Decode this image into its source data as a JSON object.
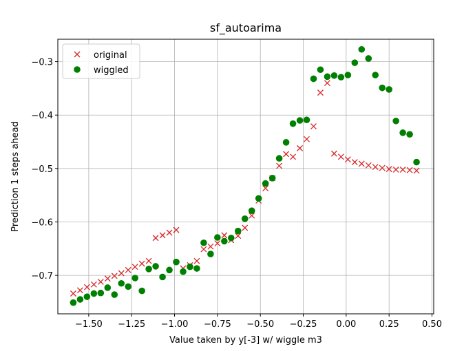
{
  "chart_data": {
    "type": "scatter",
    "title": "sf_autoarima",
    "xlabel": "Value taken by y[-3] w/ wiggle m3",
    "ylabel": "Prediction 1 steps ahead",
    "xlim": [
      -1.68,
      0.51
    ],
    "ylim": [
      -0.772,
      -0.258
    ],
    "xticks": [
      -1.5,
      -1.25,
      -1.0,
      -0.75,
      -0.5,
      -0.25,
      0.0,
      0.25,
      0.5
    ],
    "xtick_labels": [
      "−1.50",
      "−1.25",
      "−1.00",
      "−0.75",
      "−0.50",
      "−0.25",
      "0.00",
      "0.25",
      "0.50"
    ],
    "yticks": [
      -0.7,
      -0.6,
      -0.5,
      -0.4,
      -0.3
    ],
    "ytick_labels": [
      "−0.7",
      "−0.6",
      "−0.5",
      "−0.4",
      "−0.3"
    ],
    "grid": true,
    "legend": "top-left",
    "series": [
      {
        "name": "original",
        "marker": "x",
        "color": "#d62728",
        "points": [
          [
            -1.59,
            -0.734
          ],
          [
            -1.55,
            -0.728
          ],
          [
            -1.51,
            -0.722
          ],
          [
            -1.47,
            -0.717
          ],
          [
            -1.43,
            -0.712
          ],
          [
            -1.39,
            -0.706
          ],
          [
            -1.35,
            -0.701
          ],
          [
            -1.31,
            -0.696
          ],
          [
            -1.27,
            -0.69
          ],
          [
            -1.23,
            -0.684
          ],
          [
            -1.19,
            -0.678
          ],
          [
            -1.15,
            -0.673
          ],
          [
            -1.11,
            -0.63
          ],
          [
            -1.07,
            -0.625
          ],
          [
            -1.03,
            -0.62
          ],
          [
            -0.99,
            -0.615
          ],
          [
            -0.95,
            -0.687
          ],
          [
            -0.91,
            -0.681
          ],
          [
            -0.87,
            -0.673
          ],
          [
            -0.83,
            -0.651
          ],
          [
            -0.79,
            -0.646
          ],
          [
            -0.75,
            -0.64
          ],
          [
            -0.71,
            -0.625
          ],
          [
            -0.67,
            -0.634
          ],
          [
            -0.63,
            -0.626
          ],
          [
            -0.59,
            -0.611
          ],
          [
            -0.55,
            -0.588
          ],
          [
            -0.51,
            -0.56
          ],
          [
            -0.47,
            -0.537
          ],
          [
            -0.43,
            -0.518
          ],
          [
            -0.39,
            -0.495
          ],
          [
            -0.35,
            -0.473
          ],
          [
            -0.31,
            -0.478
          ],
          [
            -0.27,
            -0.462
          ],
          [
            -0.23,
            -0.445
          ],
          [
            -0.19,
            -0.421
          ],
          [
            -0.15,
            -0.358
          ],
          [
            -0.11,
            -0.34
          ],
          [
            -0.07,
            -0.472
          ],
          [
            -0.03,
            -0.478
          ],
          [
            0.01,
            -0.483
          ],
          [
            0.05,
            -0.488
          ],
          [
            0.09,
            -0.491
          ],
          [
            0.13,
            -0.494
          ],
          [
            0.17,
            -0.497
          ],
          [
            0.21,
            -0.499
          ],
          [
            0.25,
            -0.501
          ],
          [
            0.29,
            -0.502
          ],
          [
            0.33,
            -0.502
          ],
          [
            0.37,
            -0.503
          ],
          [
            0.41,
            -0.504
          ]
        ]
      },
      {
        "name": "wiggled",
        "marker": "o",
        "color": "#008000",
        "points": [
          [
            -1.59,
            -0.751
          ],
          [
            -1.55,
            -0.745
          ],
          [
            -1.51,
            -0.74
          ],
          [
            -1.47,
            -0.734
          ],
          [
            -1.43,
            -0.733
          ],
          [
            -1.39,
            -0.723
          ],
          [
            -1.35,
            -0.736
          ],
          [
            -1.31,
            -0.715
          ],
          [
            -1.27,
            -0.721
          ],
          [
            -1.23,
            -0.705
          ],
          [
            -1.19,
            -0.729
          ],
          [
            -1.15,
            -0.688
          ],
          [
            -1.11,
            -0.683
          ],
          [
            -1.07,
            -0.703
          ],
          [
            -1.03,
            -0.69
          ],
          [
            -0.99,
            -0.675
          ],
          [
            -0.95,
            -0.693
          ],
          [
            -0.91,
            -0.684
          ],
          [
            -0.87,
            -0.687
          ],
          [
            -0.83,
            -0.639
          ],
          [
            -0.79,
            -0.66
          ],
          [
            -0.75,
            -0.629
          ],
          [
            -0.71,
            -0.636
          ],
          [
            -0.67,
            -0.63
          ],
          [
            -0.63,
            -0.617
          ],
          [
            -0.59,
            -0.594
          ],
          [
            -0.55,
            -0.579
          ],
          [
            -0.51,
            -0.556
          ],
          [
            -0.47,
            -0.528
          ],
          [
            -0.43,
            -0.518
          ],
          [
            -0.39,
            -0.481
          ],
          [
            -0.35,
            -0.451
          ],
          [
            -0.31,
            -0.416
          ],
          [
            -0.27,
            -0.41
          ],
          [
            -0.23,
            -0.409
          ],
          [
            -0.19,
            -0.332
          ],
          [
            -0.15,
            -0.315
          ],
          [
            -0.11,
            -0.328
          ],
          [
            -0.07,
            -0.326
          ],
          [
            -0.03,
            -0.329
          ],
          [
            0.01,
            -0.325
          ],
          [
            0.05,
            -0.302
          ],
          [
            0.09,
            -0.277
          ],
          [
            0.13,
            -0.294
          ],
          [
            0.17,
            -0.325
          ],
          [
            0.21,
            -0.349
          ],
          [
            0.25,
            -0.352
          ],
          [
            0.29,
            -0.411
          ],
          [
            0.33,
            -0.433
          ],
          [
            0.37,
            -0.436
          ],
          [
            0.41,
            -0.488
          ]
        ]
      }
    ]
  }
}
